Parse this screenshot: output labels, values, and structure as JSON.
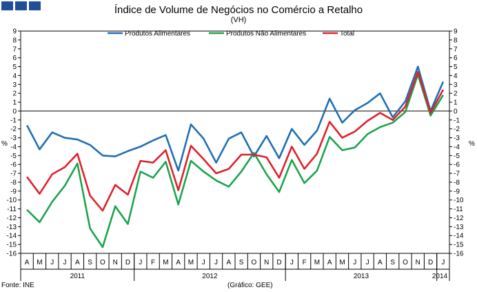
{
  "chart_data": {
    "type": "line",
    "title": "Índice de Volume de Negócios no Comércio a Retalho",
    "subtitle": "(VH)",
    "ylabel_left": "%",
    "ylabel_right": "%",
    "ylim": [
      -16,
      9
    ],
    "yticks": [
      9,
      8,
      7,
      6,
      5,
      4,
      3,
      2,
      1,
      0,
      -1,
      -2,
      -3,
      -4,
      -5,
      -6,
      -7,
      -8,
      -9,
      -10,
      -11,
      -12,
      -13,
      -14,
      -15,
      -16
    ],
    "categories": [
      "A",
      "M",
      "J",
      "J",
      "A",
      "S",
      "O",
      "N",
      "D",
      "J",
      "F",
      "M",
      "A",
      "M",
      "J",
      "J",
      "A",
      "S",
      "O",
      "N",
      "D",
      "J",
      "F",
      "M",
      "A",
      "M",
      "J",
      "J",
      "A",
      "S",
      "O",
      "N",
      "D",
      "J"
    ],
    "year_labels": [
      "2011",
      "2012",
      "2013",
      "2014"
    ],
    "series": [
      {
        "name": "Produtos Alimentares",
        "color": "#1f6fb4",
        "values": [
          -1.6,
          -4.3,
          -2.4,
          -3.0,
          -3.2,
          -3.8,
          -5.0,
          -5.1,
          -4.5,
          -4.0,
          -3.3,
          -2.7,
          -6.7,
          -1.5,
          -3.1,
          -5.8,
          -3.1,
          -2.4,
          -5.1,
          -2.8,
          -5.3,
          -2.0,
          -3.8,
          -2.2,
          1.4,
          -1.3,
          0.1,
          0.9,
          2.0,
          -0.7,
          1.1,
          5.0,
          0.0,
          3.3
        ]
      },
      {
        "name": "Produtos Não Alimentares",
        "color": "#1aa44c",
        "values": [
          -11.1,
          -12.5,
          -10.2,
          -8.4,
          -5.9,
          -13.2,
          -15.3,
          -10.7,
          -12.7,
          -6.8,
          -7.5,
          -5.7,
          -10.5,
          -5.6,
          -6.8,
          -7.8,
          -8.5,
          -6.8,
          -4.7,
          -7.1,
          -9.1,
          -5.5,
          -8.1,
          -6.7,
          -2.9,
          -4.4,
          -4.1,
          -2.6,
          -1.8,
          -1.3,
          -0.1,
          4.1,
          -0.5,
          1.8
        ]
      },
      {
        "name": "Total",
        "color": "#e0202a",
        "values": [
          -7.4,
          -9.3,
          -7.1,
          -6.3,
          -4.8,
          -9.5,
          -11.2,
          -8.3,
          -9.4,
          -5.6,
          -5.8,
          -4.4,
          -8.9,
          -3.9,
          -5.4,
          -7.0,
          -6.5,
          -4.9,
          -4.9,
          -5.2,
          -7.5,
          -4.0,
          -6.5,
          -4.8,
          -1.2,
          -3.0,
          -2.3,
          -1.1,
          -0.2,
          -1.0,
          0.5,
          4.4,
          -0.2,
          2.4
        ]
      }
    ]
  },
  "footer": {
    "source": "Fonte: INE",
    "credit": "(Gráfico: GEE)"
  }
}
